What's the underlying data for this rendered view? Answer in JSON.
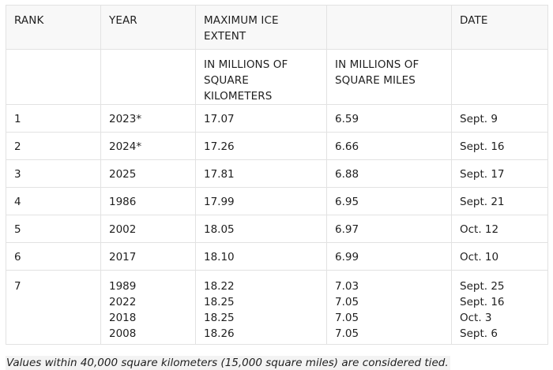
{
  "header": {
    "rank": "RANK",
    "year": "YEAR",
    "extent_line1": "MAXIMUM ICE",
    "extent_line2": "EXTENT",
    "date": "DATE",
    "km_line1": "IN MILLIONS OF",
    "km_line2": "SQUARE KILOMETERS",
    "mi_line1": "IN MILLIONS OF",
    "mi_line2": "SQUARE MILES"
  },
  "rows": [
    {
      "rank": "1",
      "year": "2023*",
      "km": "17.07",
      "mi": "6.59",
      "date": "Sept. 9"
    },
    {
      "rank": "2",
      "year": "2024*",
      "km": "17.26",
      "mi": "6.66",
      "date": "Sept. 16"
    },
    {
      "rank": "3",
      "year": "2025",
      "km": "17.81",
      "mi": "6.88",
      "date": "Sept. 17"
    },
    {
      "rank": "4",
      "year": "1986",
      "km": "17.99",
      "mi": "6.95",
      "date": "Sept. 21"
    },
    {
      "rank": "5",
      "year": "2002",
      "km": "18.05",
      "mi": "6.97",
      "date": "Oct. 12"
    },
    {
      "rank": "6",
      "year": "2017",
      "km": "18.10",
      "mi": "6.99",
      "date": "Oct. 10"
    }
  ],
  "tied_row": {
    "rank": "7",
    "years": [
      "1989",
      "2022",
      "2018",
      "2008"
    ],
    "km": [
      "18.22",
      "18.25",
      "18.25",
      "18.26"
    ],
    "mi": [
      "7.03",
      "7.05",
      "7.05",
      "7.05"
    ],
    "dates": [
      "Sept. 25",
      "Sept. 16",
      "Oct. 3",
      "Sept. 6"
    ]
  },
  "footnote": "Values within 40,000 square kilometers (15,000 square miles) are considered tied."
}
